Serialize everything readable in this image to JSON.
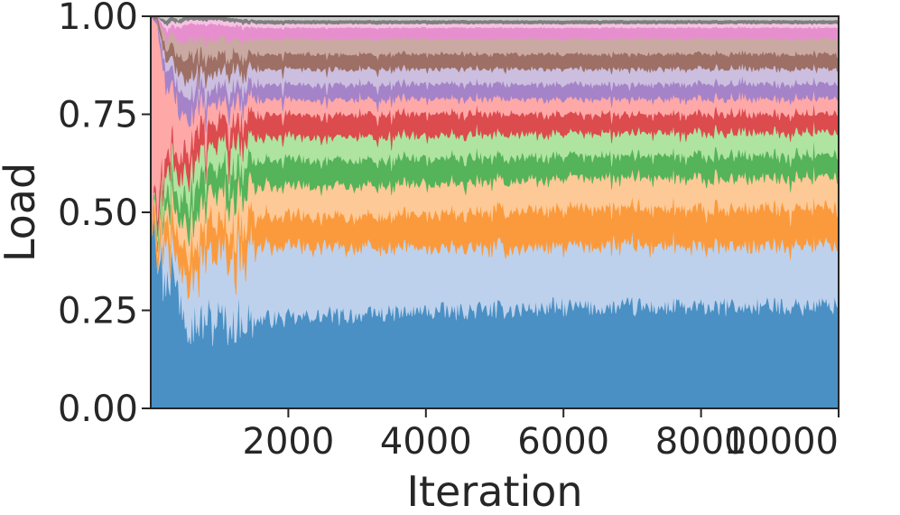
{
  "chart_data": {
    "type": "area",
    "stacked": true,
    "normalized": true,
    "title": "",
    "xlabel": "Iteration",
    "ylabel": "Load",
    "xlim": [
      0,
      10000
    ],
    "ylim": [
      0,
      1
    ],
    "x_ticks": [
      2000,
      4000,
      6000,
      8000,
      10000
    ],
    "x_tick_labels": [
      "2000",
      "4000",
      "6000",
      "8000",
      "10000"
    ],
    "y_ticks": [
      0,
      0.25,
      0.5,
      0.75,
      1
    ],
    "y_tick_labels": [
      "0.00",
      "0.25",
      "0.50",
      "0.75",
      "1.00"
    ],
    "grid": false,
    "legend": "none",
    "x": [
      0,
      100,
      200,
      300,
      400,
      500,
      600,
      800,
      1000,
      1500,
      2000,
      3000,
      4000,
      6000,
      8000,
      10000
    ],
    "series": [
      {
        "color": "#4a90c4",
        "values": [
          0.5,
          0.44,
          0.33,
          0.36,
          0.31,
          0.27,
          0.23,
          0.23,
          0.23,
          0.24,
          0.24,
          0.25,
          0.26,
          0.27,
          0.27,
          0.28
        ]
      },
      {
        "color": "#bdd1ec",
        "values": [
          0.0,
          0.0,
          0.1,
          0.05,
          0.07,
          0.1,
          0.13,
          0.15,
          0.17,
          0.19,
          0.19,
          0.18,
          0.17,
          0.16,
          0.16,
          0.16
        ]
      },
      {
        "color": "#fb9a3c",
        "values": [
          0.0,
          0.06,
          0.05,
          0.06,
          0.06,
          0.07,
          0.07,
          0.08,
          0.08,
          0.08,
          0.08,
          0.08,
          0.09,
          0.1,
          0.1,
          0.1
        ]
      },
      {
        "color": "#fdc996",
        "values": [
          0.0,
          0.02,
          0.03,
          0.04,
          0.05,
          0.06,
          0.07,
          0.07,
          0.08,
          0.08,
          0.08,
          0.08,
          0.08,
          0.08,
          0.08,
          0.08
        ]
      },
      {
        "color": "#55b35a",
        "values": [
          0.0,
          0.02,
          0.04,
          0.04,
          0.05,
          0.06,
          0.07,
          0.07,
          0.07,
          0.07,
          0.07,
          0.07,
          0.07,
          0.06,
          0.06,
          0.06
        ]
      },
      {
        "color": "#aee4a0",
        "values": [
          0.0,
          0.01,
          0.04,
          0.05,
          0.05,
          0.06,
          0.06,
          0.06,
          0.06,
          0.06,
          0.06,
          0.06,
          0.06,
          0.06,
          0.06,
          0.06
        ]
      },
      {
        "color": "#dc4b4e",
        "values": [
          0.0,
          0.03,
          0.05,
          0.04,
          0.05,
          0.06,
          0.06,
          0.06,
          0.06,
          0.06,
          0.06,
          0.06,
          0.06,
          0.05,
          0.05,
          0.05
        ]
      },
      {
        "color": "#ffa8a8",
        "values": [
          0.5,
          0.4,
          0.2,
          0.17,
          0.14,
          0.08,
          0.07,
          0.06,
          0.05,
          0.04,
          0.04,
          0.04,
          0.04,
          0.04,
          0.04,
          0.04
        ]
      },
      {
        "color": "#a583c8",
        "values": [
          0.0,
          0.01,
          0.04,
          0.05,
          0.05,
          0.05,
          0.05,
          0.04,
          0.04,
          0.04,
          0.04,
          0.04,
          0.04,
          0.04,
          0.04,
          0.04
        ]
      },
      {
        "color": "#cbbedf",
        "values": [
          0.0,
          0.0,
          0.02,
          0.03,
          0.04,
          0.04,
          0.04,
          0.04,
          0.04,
          0.04,
          0.04,
          0.04,
          0.04,
          0.04,
          0.04,
          0.04
        ]
      },
      {
        "color": "#9e6f64",
        "values": [
          0.0,
          0.01,
          0.03,
          0.04,
          0.04,
          0.05,
          0.05,
          0.04,
          0.04,
          0.04,
          0.04,
          0.04,
          0.04,
          0.04,
          0.04,
          0.04
        ]
      },
      {
        "color": "#c9a9a2",
        "values": [
          0.0,
          0.0,
          0.02,
          0.03,
          0.04,
          0.04,
          0.04,
          0.04,
          0.04,
          0.04,
          0.04,
          0.04,
          0.04,
          0.04,
          0.04,
          0.04
        ]
      },
      {
        "color": "#e78fce",
        "values": [
          0.0,
          0.0,
          0.02,
          0.02,
          0.03,
          0.04,
          0.04,
          0.04,
          0.04,
          0.03,
          0.03,
          0.03,
          0.03,
          0.03,
          0.03,
          0.03
        ]
      },
      {
        "color": "#f5c3e2",
        "values": [
          0.0,
          0.0,
          0.01,
          0.01,
          0.01,
          0.01,
          0.01,
          0.01,
          0.01,
          0.01,
          0.01,
          0.01,
          0.01,
          0.01,
          0.01,
          0.01
        ]
      },
      {
        "color": "#7f7f7f",
        "values": [
          0.0,
          0.0,
          0.01,
          0.01,
          0.01,
          0.01,
          0.01,
          0.01,
          0.01,
          0.01,
          0.01,
          0.01,
          0.01,
          0.01,
          0.01,
          0.01
        ]
      },
      {
        "color": "#cccccc",
        "values": [
          0.0,
          0.0,
          0.01,
          0.0,
          0.01,
          0.0,
          0.0,
          0.0,
          0.0,
          0.01,
          0.01,
          0.01,
          0.01,
          0.01,
          0.01,
          0.01
        ]
      }
    ]
  }
}
